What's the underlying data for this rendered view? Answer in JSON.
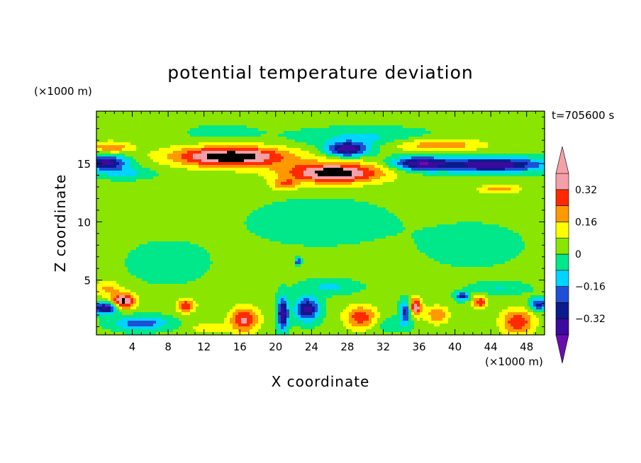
{
  "chart_data": {
    "type": "heatmap",
    "title": "potential temperature deviation",
    "xlabel": "X coordinate",
    "ylabel": "Z coordinate",
    "x_unit": "(×1000 m)",
    "y_unit": "(×1000 m)",
    "annotation": "t=705600 s",
    "xlim": [
      0,
      50
    ],
    "ylim": [
      0.3,
      19.5
    ],
    "x_ticks": [
      4,
      8,
      12,
      16,
      20,
      24,
      28,
      32,
      36,
      40,
      44,
      48
    ],
    "y_ticks": [
      5,
      10,
      15
    ],
    "colorbar": {
      "levels": [
        -0.4,
        -0.32,
        -0.24,
        -0.16,
        -0.08,
        0,
        0.08,
        0.16,
        0.24,
        0.32,
        0.4
      ],
      "tick_labels": [
        "0.32",
        "0.16",
        "0",
        "−0.16",
        "−0.32"
      ],
      "tick_values": [
        0.32,
        0.16,
        0,
        -0.16,
        -0.32
      ],
      "colors": [
        "#6a0dad",
        "#3b0a9e",
        "#0b1a8c",
        "#1e4fd6",
        "#00d4ff",
        "#00e88a",
        "#8ae600",
        "#ffff00",
        "#ff9900",
        "#ff2a00",
        "#f4a0a8"
      ],
      "extend": "both"
    },
    "background_value": 0.02,
    "features": [
      {
        "x": 15,
        "z": 15.6,
        "sx": 6.5,
        "sz": 0.9,
        "value": 0.46
      },
      {
        "x": 26.5,
        "z": 14.2,
        "sx": 5.5,
        "sz": 0.9,
        "value": 0.44
      },
      {
        "x": 21,
        "z": 13.2,
        "sx": 1.5,
        "sz": 0.5,
        "value": 0.2
      },
      {
        "x": 45,
        "z": 12.8,
        "sx": 2.5,
        "sz": 0.4,
        "value": 0.18
      },
      {
        "x": 44,
        "z": 14.9,
        "sx": 6,
        "sz": 0.6,
        "value": -0.42
      },
      {
        "x": 36,
        "z": 15,
        "sx": 3,
        "sz": 0.6,
        "value": -0.36
      },
      {
        "x": 28,
        "z": 16.2,
        "sx": 2.2,
        "sz": 0.6,
        "value": -0.4
      },
      {
        "x": 1,
        "z": 15.1,
        "sx": 2.5,
        "sz": 0.6,
        "value": -0.38
      },
      {
        "x": 1.5,
        "z": 16.4,
        "sx": 2.5,
        "sz": 0.5,
        "value": 0.2
      },
      {
        "x": 38,
        "z": 16.6,
        "sx": 5,
        "sz": 0.6,
        "value": 0.22
      },
      {
        "x": 30,
        "z": 17.2,
        "sx": 7,
        "sz": 0.8,
        "value": -0.12
      },
      {
        "x": 3,
        "z": 14.2,
        "sx": 3,
        "sz": 0.5,
        "value": -0.14
      },
      {
        "x": 14,
        "z": 17.5,
        "sx": 5,
        "sz": 1,
        "value": -0.04
      },
      {
        "x": 25,
        "z": 10,
        "sx": 8,
        "sz": 2,
        "value": -0.06
      },
      {
        "x": 8,
        "z": 6.5,
        "sx": 5,
        "sz": 2,
        "value": -0.05
      },
      {
        "x": 42,
        "z": 8,
        "sx": 6,
        "sz": 2,
        "value": -0.05
      },
      {
        "x": 3,
        "z": 3.2,
        "sx": 1.3,
        "sz": 0.7,
        "value": 0.42
      },
      {
        "x": 1,
        "z": 2.6,
        "sx": 1.5,
        "sz": 0.5,
        "value": -0.38
      },
      {
        "x": 5,
        "z": 1.3,
        "sx": 3,
        "sz": 0.6,
        "value": -0.24
      },
      {
        "x": 1.2,
        "z": 4.3,
        "sx": 1.5,
        "sz": 0.7,
        "value": 0.16
      },
      {
        "x": 10,
        "z": 2.8,
        "sx": 1,
        "sz": 0.6,
        "value": 0.3
      },
      {
        "x": 16.5,
        "z": 1.6,
        "sx": 1.6,
        "sz": 1.1,
        "value": 0.32
      },
      {
        "x": 20.8,
        "z": 2.1,
        "sx": 0.6,
        "sz": 1.4,
        "value": -0.4
      },
      {
        "x": 23.5,
        "z": 2.5,
        "sx": 1.3,
        "sz": 1,
        "value": -0.38
      },
      {
        "x": 29.5,
        "z": 1.8,
        "sx": 1.8,
        "sz": 1,
        "value": 0.28
      },
      {
        "x": 34.5,
        "z": 2.3,
        "sx": 0.6,
        "sz": 0.9,
        "value": -0.3
      },
      {
        "x": 35.6,
        "z": 2.7,
        "sx": 0.7,
        "sz": 0.8,
        "value": 0.36
      },
      {
        "x": 38,
        "z": 2,
        "sx": 1.4,
        "sz": 0.8,
        "value": 0.2
      },
      {
        "x": 40.8,
        "z": 3.6,
        "sx": 0.7,
        "sz": 0.35,
        "value": -0.32
      },
      {
        "x": 42.8,
        "z": 3.1,
        "sx": 0.8,
        "sz": 0.5,
        "value": 0.3
      },
      {
        "x": 47,
        "z": 1.4,
        "sx": 1.8,
        "sz": 1.1,
        "value": 0.3
      },
      {
        "x": 49.4,
        "z": 2.9,
        "sx": 1,
        "sz": 0.5,
        "value": -0.3
      },
      {
        "x": 26,
        "z": 4.4,
        "sx": 3,
        "sz": 0.6,
        "value": -0.12
      },
      {
        "x": 33,
        "z": 1.2,
        "sx": 2,
        "sz": 0.6,
        "value": -0.1
      },
      {
        "x": 45,
        "z": 4.3,
        "sx": 3,
        "sz": 0.5,
        "value": -0.1
      },
      {
        "x": 12.5,
        "z": 0.9,
        "sx": 2,
        "sz": 0.5,
        "value": 0.12
      },
      {
        "x": 22.5,
        "z": 6.6,
        "sx": 0.3,
        "sz": 0.3,
        "value": -0.3
      }
    ]
  }
}
